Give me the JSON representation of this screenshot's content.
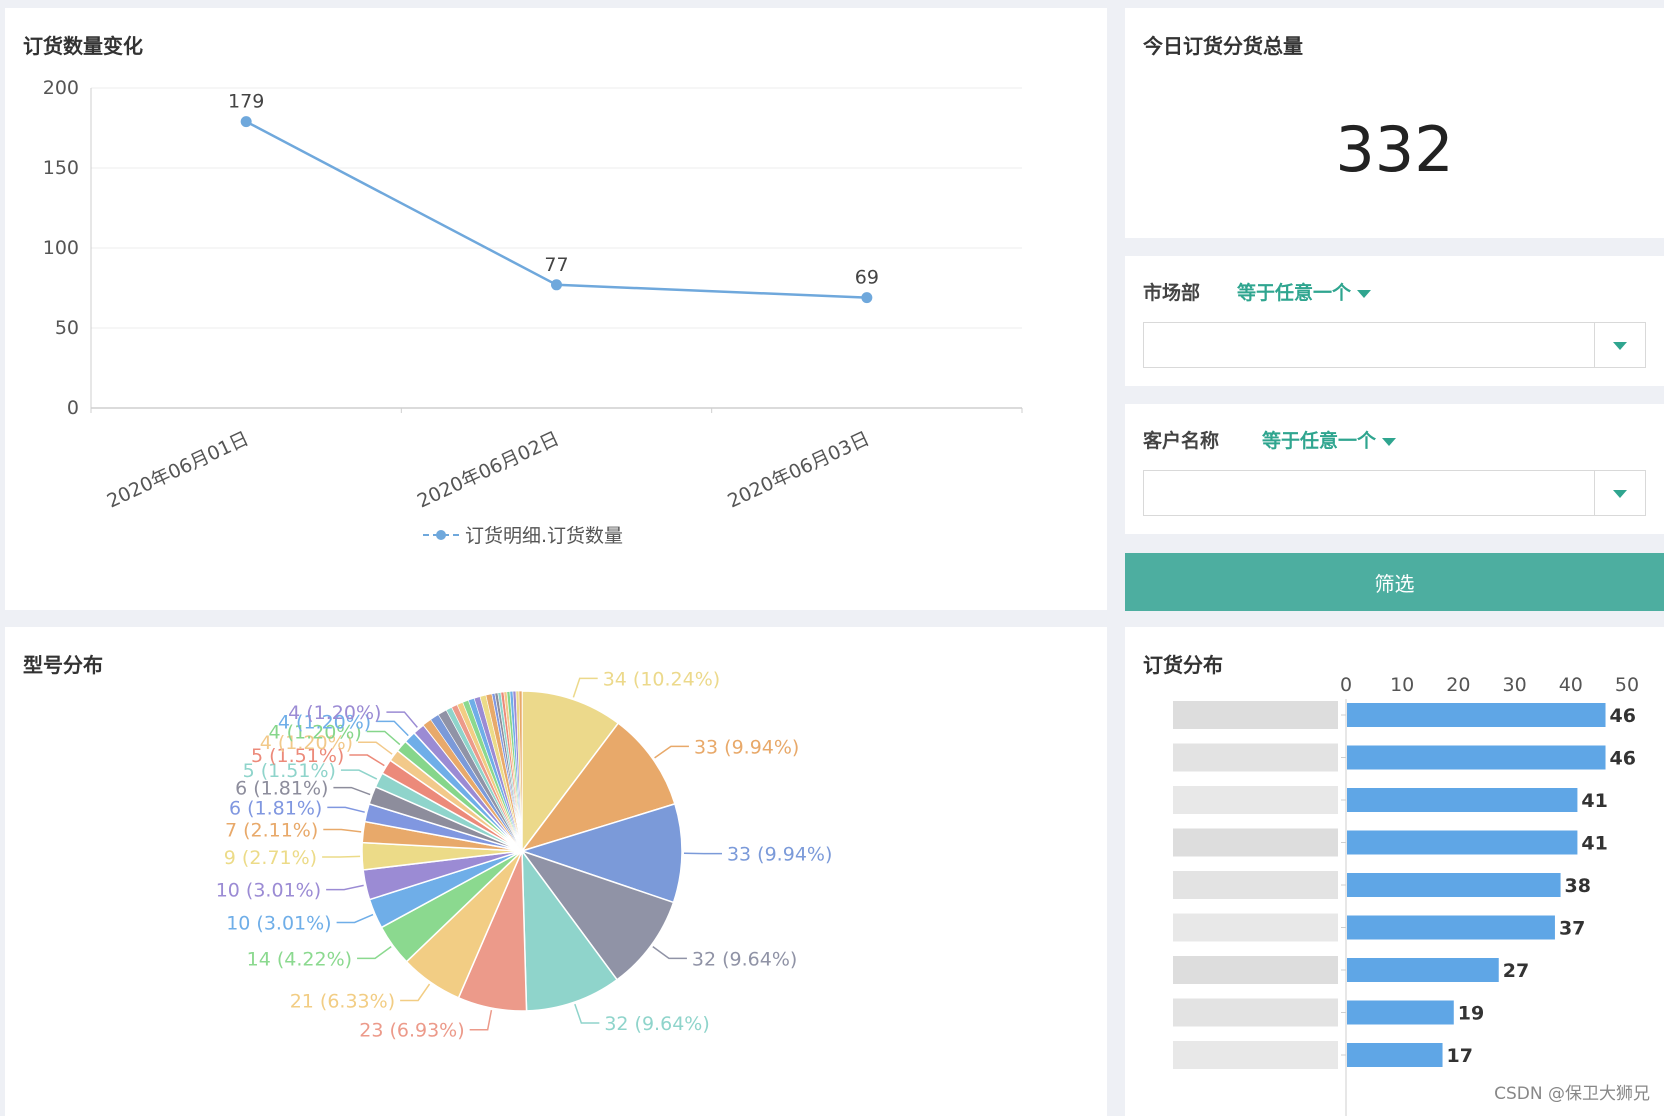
{
  "line_panel": {
    "title": "订货数量变化"
  },
  "total_panel": {
    "title": "今日订货分货总量",
    "value": "332"
  },
  "market_filter": {
    "label": "市场部",
    "mode": "等于任意一个"
  },
  "customer_filter": {
    "label": "客户名称",
    "mode": "等于任意一个"
  },
  "filter_button": {
    "label": "筛选"
  },
  "pie_panel": {
    "title": "型号分布"
  },
  "bar_panel": {
    "title": "订货分布"
  },
  "watermark": "CSDN @保卫大狮兄",
  "chart_data": [
    {
      "type": "line",
      "title": "订货数量变化",
      "categories": [
        "2020年06月01日",
        "2020年06月02日",
        "2020年06月03日"
      ],
      "series": [
        {
          "name": "订货明细.订货数量",
          "values": [
            179,
            77,
            69
          ],
          "color": "#6fa8dc"
        }
      ],
      "ylim": [
        0,
        200
      ],
      "yticks": [
        0,
        50,
        100,
        150,
        200
      ],
      "grid": true,
      "legend": "bottom"
    },
    {
      "type": "pie",
      "title": "型号分布",
      "slices": [
        {
          "label": "34 (10.24%)",
          "value": 34,
          "color": "#ecd98b"
        },
        {
          "label": "33 (9.94%)",
          "value": 33,
          "color": "#e8a96a"
        },
        {
          "label": "33 (9.94%)",
          "value": 33,
          "color": "#7b9ad9"
        },
        {
          "label": "32 (9.64%)",
          "value": 32,
          "color": "#9093a6"
        },
        {
          "label": "32 (9.64%)",
          "value": 32,
          "color": "#8fd4cb"
        },
        {
          "label": "23 (6.93%)",
          "value": 23,
          "color": "#ec9a8a"
        },
        {
          "label": "21 (6.33%)",
          "value": 21,
          "color": "#f2cd84"
        },
        {
          "label": "14 (4.22%)",
          "value": 14,
          "color": "#8bd98f"
        },
        {
          "label": "10 (3.01%)",
          "value": 10,
          "color": "#6faee8"
        },
        {
          "label": "10 (3.01%)",
          "value": 10,
          "color": "#9b8bd4"
        },
        {
          "label": "9 (2.71%)",
          "value": 9,
          "color": "#ecdb88"
        },
        {
          "label": "7 (2.11%)",
          "value": 7,
          "color": "#e8a96a"
        },
        {
          "label": "6 (1.81%)",
          "value": 6,
          "color": "#8097e0"
        },
        {
          "label": "6 (1.81%)",
          "value": 6,
          "color": "#8d8d9c"
        },
        {
          "label": "5 (1.51%)",
          "value": 5,
          "color": "#8fd4cb"
        },
        {
          "label": "5 (1.51%)",
          "value": 5,
          "color": "#ec8a7a"
        },
        {
          "label": "4 (1.20%)",
          "value": 4,
          "color": "#f2c98a"
        },
        {
          "label": "4 (1.20%)",
          "value": 4,
          "color": "#86d68b"
        },
        {
          "label": "4 (1.20%)",
          "value": 4,
          "color": "#6faee8"
        },
        {
          "label": "4 (1.20%)",
          "value": 4,
          "color": "#9b8bd4"
        }
      ],
      "small_slices": [
        3,
        3,
        3,
        2,
        2,
        2,
        2,
        2,
        2,
        2,
        2,
        1,
        1,
        1,
        1,
        1,
        1,
        1,
        1,
        1,
        1
      ],
      "small_slice_colors": [
        "#e8a96a",
        "#7b9ad9",
        "#9093a6",
        "#8fd4cb",
        "#ec9a8a",
        "#f2cd84",
        "#8bd98f",
        "#6faee8",
        "#9b8bd4",
        "#ecdb88",
        "#e8a96a",
        "#8097e0",
        "#8d8d9c",
        "#8fd4cb",
        "#ec8a7a",
        "#f2c98a",
        "#86d68b",
        "#6faee8",
        "#9b8bd4",
        "#ecd98b",
        "#e8a96a"
      ]
    },
    {
      "type": "bar",
      "orientation": "horizontal",
      "title": "订货分布",
      "values": [
        46,
        46,
        41,
        41,
        38,
        37,
        27,
        19,
        17
      ],
      "xlim": [
        0,
        50
      ],
      "xticks": [
        0,
        10,
        20,
        30,
        40,
        50
      ],
      "color": "#5fa6e6"
    }
  ]
}
